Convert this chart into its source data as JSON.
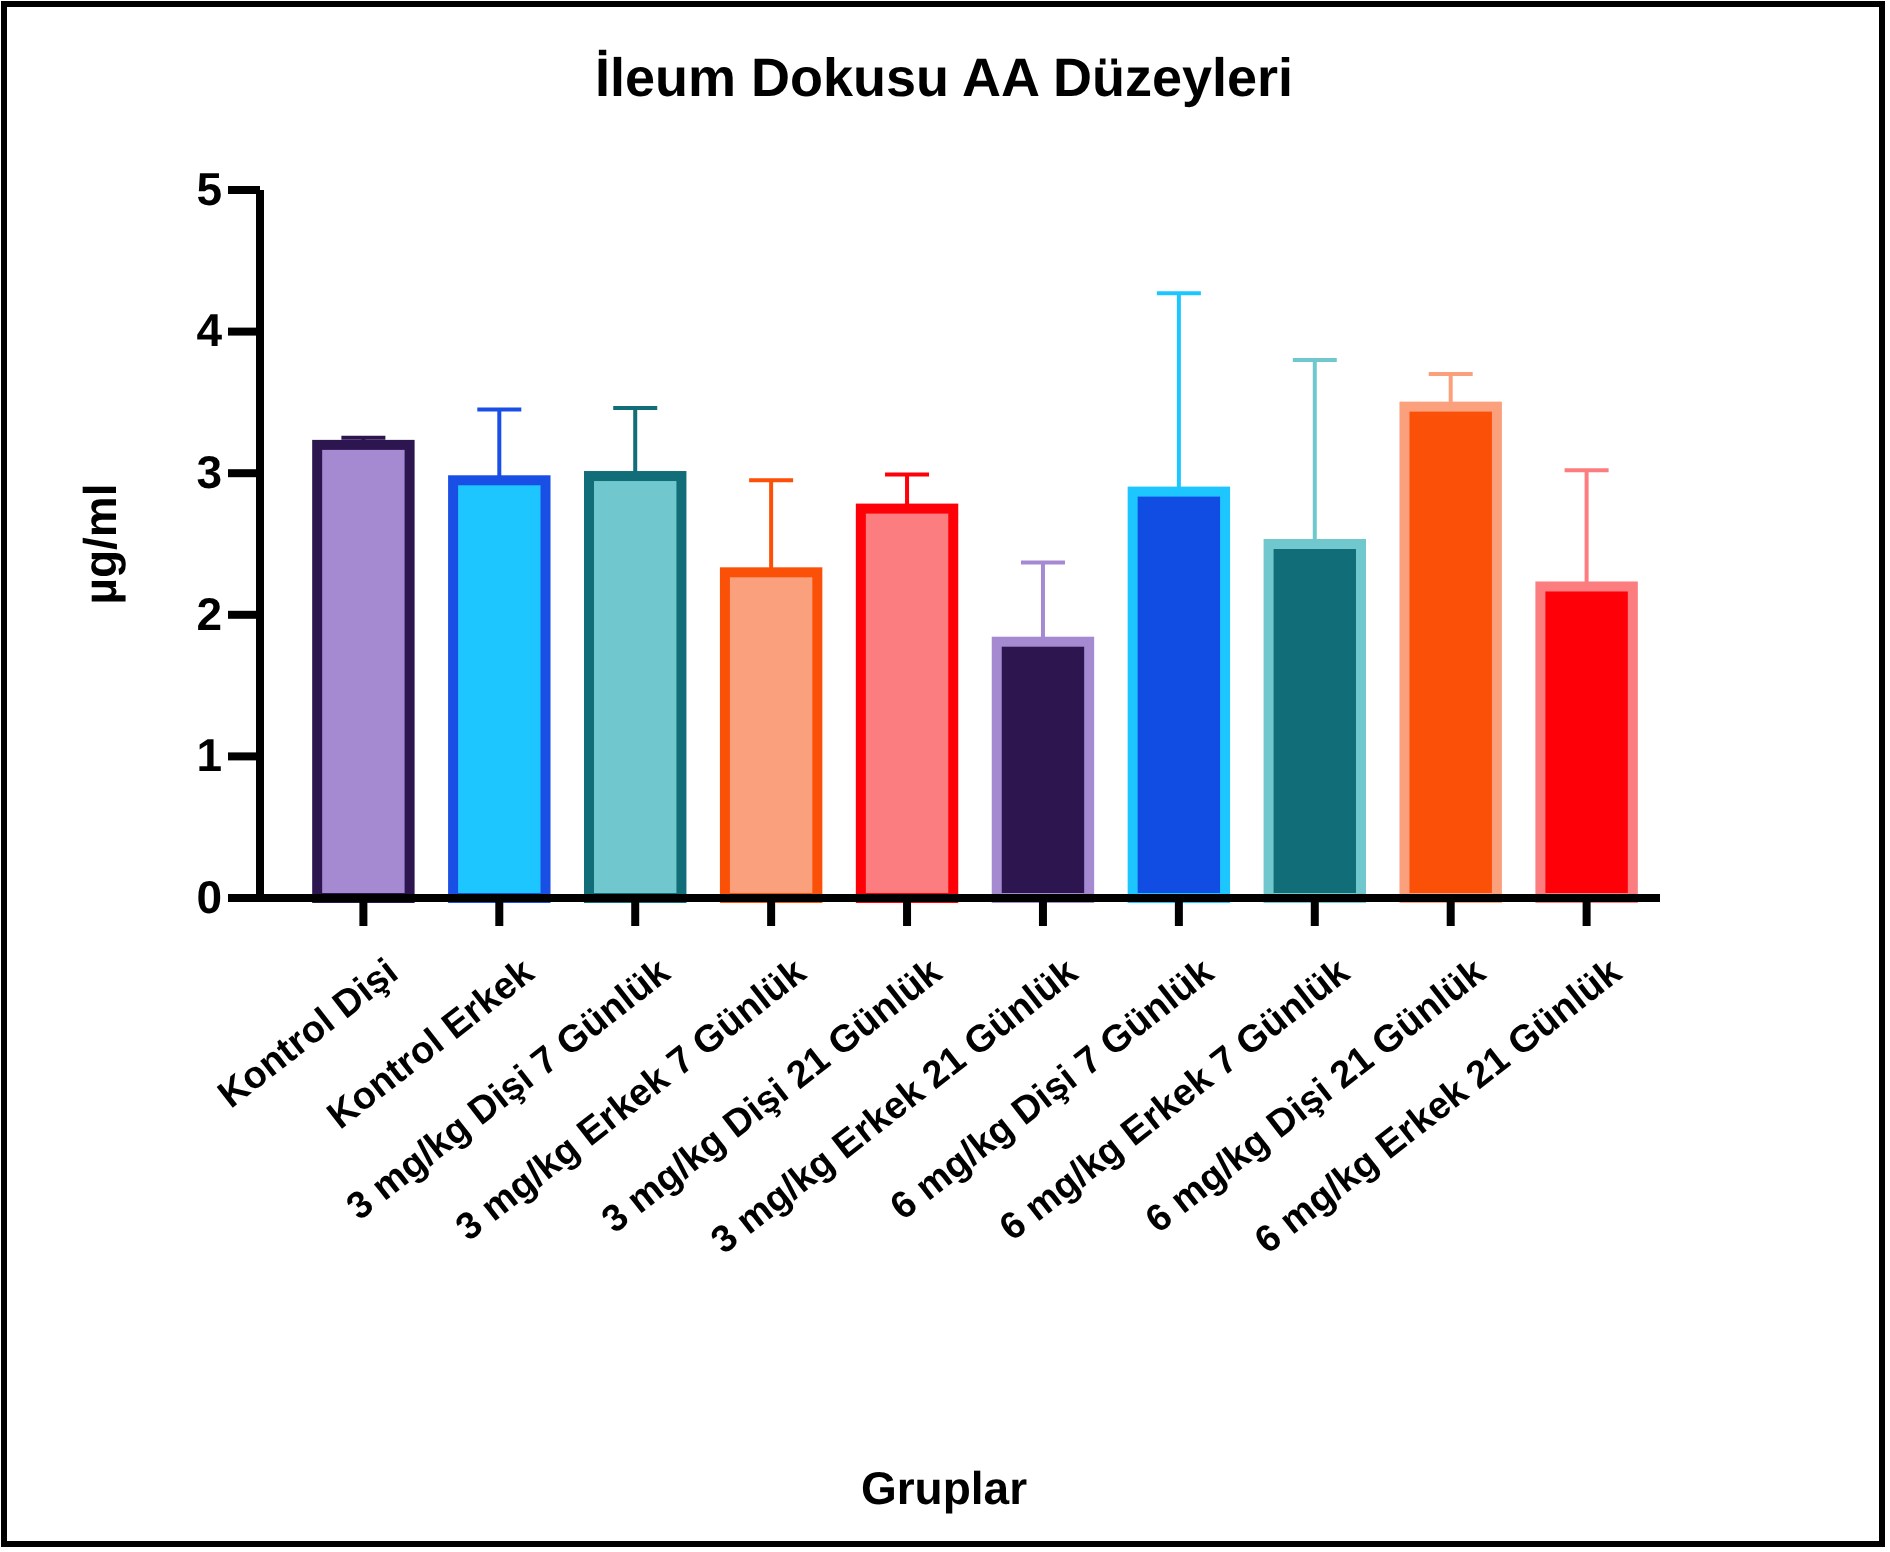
{
  "chart_data": {
    "type": "bar",
    "title": "İleum Dokusu AA Düzeyleri",
    "xlabel": "Gruplar",
    "ylabel": "µg/ml",
    "categories": [
      "Kontrol Dişi",
      "Kontrol Erkek",
      "3 mg/kg Dişi 7 Günlük",
      "3 mg/kg Erkek 7 Günlük",
      "3 mg/kg Dişi 21 Günlük",
      "3 mg/kg Erkek 21 Günlük",
      "6 mg/kg Dişi 7 Günlük",
      "6 mg/kg Erkek 7 Günlük",
      "6 mg/kg Dişi 21 Günlük",
      "6 mg/kg Erkek 21 Günlük"
    ],
    "values": [
      3.2,
      2.95,
      2.98,
      2.3,
      2.75,
      1.81,
      2.87,
      2.5,
      3.47,
      2.2
    ],
    "errors": [
      [
        3.2,
        3.25
      ],
      [
        2.95,
        3.45
      ],
      [
        2.98,
        3.46
      ],
      [
        2.3,
        2.95
      ],
      [
        2.75,
        2.99
      ],
      [
        1.81,
        2.37
      ],
      [
        2.87,
        4.27
      ],
      [
        2.5,
        3.8
      ],
      [
        3.47,
        3.7
      ],
      [
        2.2,
        3.02
      ]
    ],
    "colors": [
      "#a58ad2",
      "#1ec6ff",
      "#70c7cd",
      "#fba07c",
      "#fb7d7f",
      "#2d1650",
      "#124de3",
      "#116e78",
      "#fb5008",
      "#fe0008"
    ],
    "ylim": [
      0,
      5
    ],
    "yticks": [
      0,
      1,
      2,
      3,
      4,
      5
    ],
    "grid": false
  }
}
